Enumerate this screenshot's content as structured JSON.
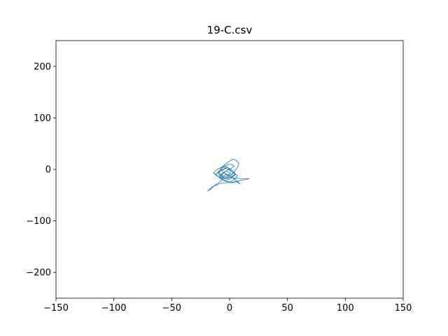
{
  "chart_data": {
    "type": "line",
    "title": "19-C.csv",
    "xlabel": "",
    "ylabel": "",
    "xlim": [
      -150,
      150
    ],
    "ylim": [
      -250,
      250
    ],
    "xticks": [
      -150,
      -100,
      -50,
      0,
      50,
      100,
      150
    ],
    "yticks": [
      -200,
      -100,
      0,
      100,
      200
    ],
    "xtick_labels": [
      "−150",
      "−100",
      "−50",
      "0",
      "50",
      "100",
      "150"
    ],
    "ytick_labels": [
      "−200",
      "−100",
      "0",
      "100",
      "200"
    ],
    "grid": false,
    "legend": "none",
    "series": [
      {
        "color": "#1f77b4",
        "x": [
          -8,
          -5,
          -2,
          1,
          -3,
          -6,
          -9,
          -4,
          0,
          3,
          1,
          -2,
          -7,
          -10,
          -6,
          -1,
          2,
          5,
          2,
          -3,
          -8,
          -12,
          -9,
          -5,
          0,
          4,
          7,
          3,
          -1,
          -6,
          -11,
          -14,
          -10,
          -4,
          1,
          6,
          9,
          6,
          2,
          -3,
          -8,
          -13,
          -16,
          -19,
          -15,
          -9,
          -4,
          2,
          8,
          13,
          17,
          11,
          5,
          -1,
          -6,
          -10,
          -7,
          -3,
          1,
          4,
          0,
          -4,
          -9,
          -5,
          -2,
          2,
          5,
          3,
          -1,
          -5,
          -8,
          -6,
          -3,
          0,
          3,
          5,
          7,
          8,
          6,
          3,
          0,
          -3,
          -6,
          -8
        ],
        "y": [
          -10,
          -6,
          -12,
          -8,
          -3,
          -9,
          -15,
          -18,
          -13,
          -7,
          -2,
          4,
          -1,
          -8,
          -14,
          -20,
          -16,
          -10,
          -4,
          2,
          -3,
          -9,
          -16,
          -22,
          -25,
          -19,
          -12,
          -6,
          0,
          5,
          0,
          -7,
          -14,
          -21,
          -26,
          -24,
          -28,
          -22,
          -15,
          -8,
          -24,
          -31,
          -38,
          -42,
          -34,
          -28,
          -26,
          -25,
          -22,
          -20,
          -18,
          -18,
          -17,
          -15,
          -12,
          -5,
          2,
          8,
          10,
          6,
          0,
          -4,
          -12,
          -16,
          -18,
          -14,
          -9,
          -3,
          3,
          7,
          3,
          -4,
          -10,
          -13,
          -8,
          -2,
          5,
          12,
          17,
          20,
          16,
          11,
          6,
          -2
        ]
      }
    ]
  }
}
